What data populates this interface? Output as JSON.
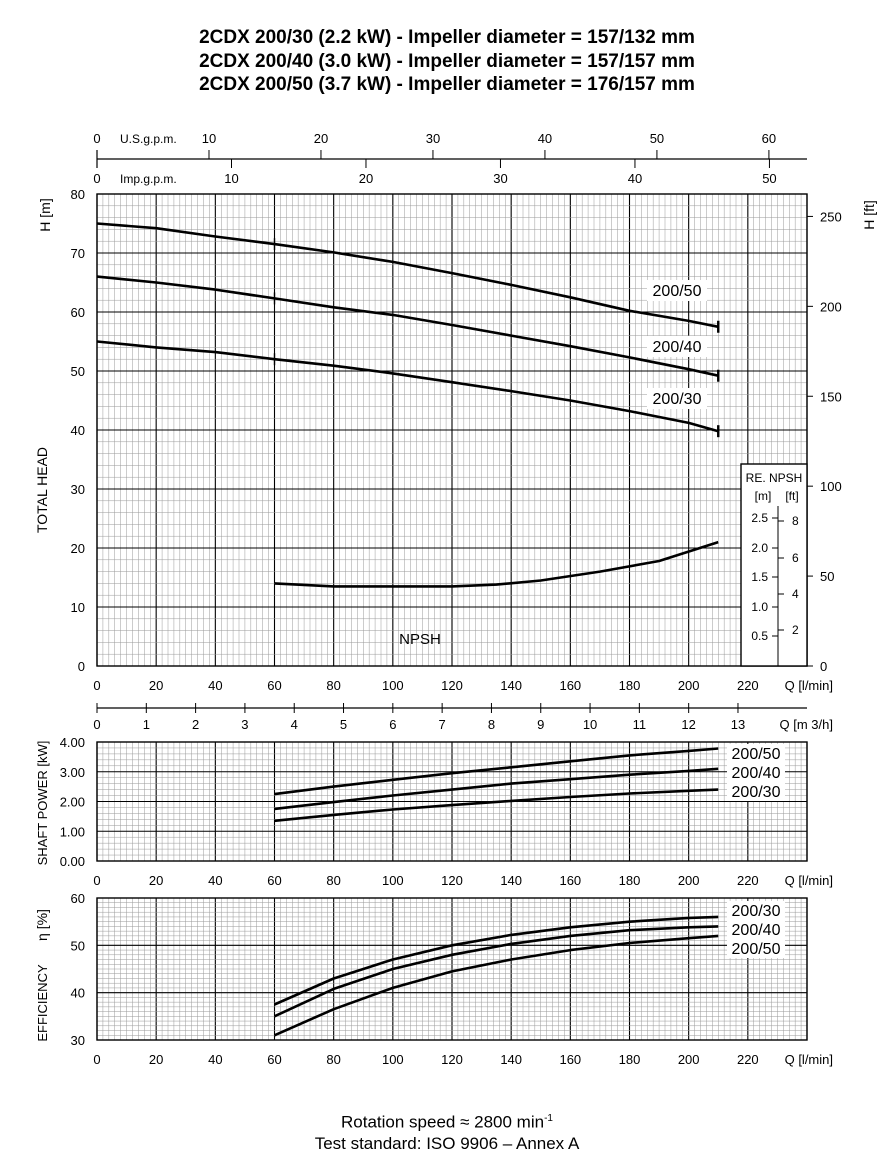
{
  "title_lines": [
    "2CDX 200/30 (2.2 kW) - Impeller diameter = 157/132 mm",
    "2CDX 200/40 (3.0 kW) - Impeller diameter = 157/157 mm",
    "2CDX 200/50 (3.7 kW) - Impeller diameter = 176/157 mm"
  ],
  "footer": {
    "rotation_prefix": "Rotation speed ≈ 2800 min",
    "rotation_sup": "-1",
    "standard": "Test standard: ISO 9906 – Annex A"
  },
  "chart_data": [
    {
      "type": "line",
      "name_text": "head",
      "ylabel": "TOTAL HEAD",
      "y_unit_left": "H  [m]",
      "y_unit_right": "H  [ft]",
      "xlabel": "Q  [l/min]",
      "xlim": [
        0,
        240
      ],
      "ylim": [
        0,
        80
      ],
      "x_ticks": [
        0,
        20,
        40,
        60,
        80,
        100,
        120,
        140,
        160,
        180,
        200,
        220
      ],
      "y_ticks": [
        0,
        10,
        20,
        30,
        40,
        50,
        60,
        70,
        80
      ],
      "y_ticks_ft": [
        0,
        50,
        100,
        150,
        200,
        250
      ],
      "top_axis_usgpm": {
        "label": "U.S.g.p.m.",
        "ticks": [
          0,
          10,
          20,
          30,
          40,
          50,
          60
        ]
      },
      "top_axis_impgpm": {
        "label": "Imp.g.p.m.",
        "ticks": [
          0,
          10,
          20,
          30,
          40,
          50
        ]
      },
      "series": [
        {
          "name": "200/50",
          "x": [
            0,
            20,
            40,
            60,
            80,
            100,
            120,
            140,
            160,
            180,
            200,
            210
          ],
          "y": [
            75,
            74.2,
            72.8,
            71.5,
            70.1,
            68.5,
            66.6,
            64.6,
            62.5,
            60.2,
            58.5,
            57.5
          ]
        },
        {
          "name": "200/40",
          "x": [
            0,
            20,
            40,
            60,
            80,
            100,
            120,
            140,
            160,
            180,
            200,
            210
          ],
          "y": [
            66,
            65,
            63.8,
            62.3,
            60.8,
            59.5,
            57.8,
            56,
            54.2,
            52.3,
            50.3,
            49.2
          ]
        },
        {
          "name": "200/30",
          "x": [
            0,
            20,
            40,
            60,
            80,
            100,
            120,
            140,
            160,
            180,
            200,
            210
          ],
          "y": [
            55,
            54,
            53.2,
            52,
            50.9,
            49.6,
            48.1,
            46.6,
            45,
            43.2,
            41.2,
            39.8
          ]
        },
        {
          "name": "NPSH",
          "x": [
            60,
            80,
            100,
            120,
            135,
            150,
            170,
            190,
            210
          ],
          "y": [
            14,
            13.5,
            13.5,
            13.5,
            13.8,
            14.5,
            16,
            17.8,
            21
          ]
        }
      ],
      "npsh_panel": {
        "title": "RE. NPSH",
        "units": [
          "[m]",
          "[ft]"
        ],
        "m_ticks": [
          "0.5",
          "1.0",
          "1.5",
          "2.0",
          "2.5"
        ],
        "ft_ticks": [
          "2",
          "4",
          "6",
          "8"
        ]
      },
      "flow_m3h_axis": {
        "label": "Q  [m 3/h]",
        "ticks": [
          0,
          1,
          2,
          3,
          4,
          5,
          6,
          7,
          8,
          9,
          10,
          11,
          12,
          13
        ]
      }
    },
    {
      "type": "line",
      "name_text": "shaft-power",
      "ylabel": "SHAFT POWER  [kW]",
      "xlabel": "Q  [l/min]",
      "xlim": [
        0,
        240
      ],
      "ylim": [
        0,
        4
      ],
      "y_tick_labels": [
        "0.00",
        "1.00",
        "2.00",
        "3.00",
        "4.00"
      ],
      "x_ticks": [
        0,
        20,
        40,
        60,
        80,
        100,
        120,
        140,
        160,
        180,
        200,
        220
      ],
      "series": [
        {
          "name": "200/50",
          "x": [
            60,
            80,
            100,
            120,
            140,
            160,
            180,
            200,
            210
          ],
          "y": [
            2.25,
            2.5,
            2.73,
            2.95,
            3.15,
            3.35,
            3.55,
            3.7,
            3.78
          ]
        },
        {
          "name": "200/40",
          "x": [
            60,
            80,
            100,
            120,
            140,
            160,
            180,
            200,
            210
          ],
          "y": [
            1.75,
            1.98,
            2.2,
            2.4,
            2.6,
            2.75,
            2.9,
            3.03,
            3.1
          ]
        },
        {
          "name": "200/30",
          "x": [
            60,
            80,
            100,
            120,
            140,
            160,
            180,
            200,
            210
          ],
          "y": [
            1.35,
            1.55,
            1.73,
            1.88,
            2.02,
            2.15,
            2.27,
            2.36,
            2.4
          ]
        }
      ]
    },
    {
      "type": "line",
      "name_text": "efficiency",
      "ylabel": "EFFICIENCY",
      "y_unit_left": "η  [%]",
      "xlabel": "Q  [l/min]",
      "xlim": [
        0,
        240
      ],
      "ylim": [
        30,
        60
      ],
      "y_ticks": [
        30,
        40,
        50,
        60
      ],
      "x_ticks": [
        0,
        20,
        40,
        60,
        80,
        100,
        120,
        140,
        160,
        180,
        200,
        220
      ],
      "series": [
        {
          "name": "200/30",
          "x": [
            60,
            80,
            100,
            120,
            140,
            160,
            180,
            200,
            210
          ],
          "y": [
            37.5,
            43,
            47,
            50,
            52.2,
            53.8,
            55,
            55.8,
            56
          ]
        },
        {
          "name": "200/40",
          "x": [
            60,
            80,
            100,
            120,
            140,
            160,
            180,
            200,
            210
          ],
          "y": [
            35,
            40.8,
            45,
            48,
            50.3,
            52,
            53.2,
            53.8,
            54
          ]
        },
        {
          "name": "200/50",
          "x": [
            60,
            80,
            100,
            120,
            140,
            160,
            180,
            200,
            210
          ],
          "y": [
            31,
            36.5,
            41,
            44.5,
            47,
            49,
            50.5,
            51.5,
            52
          ]
        }
      ]
    }
  ]
}
